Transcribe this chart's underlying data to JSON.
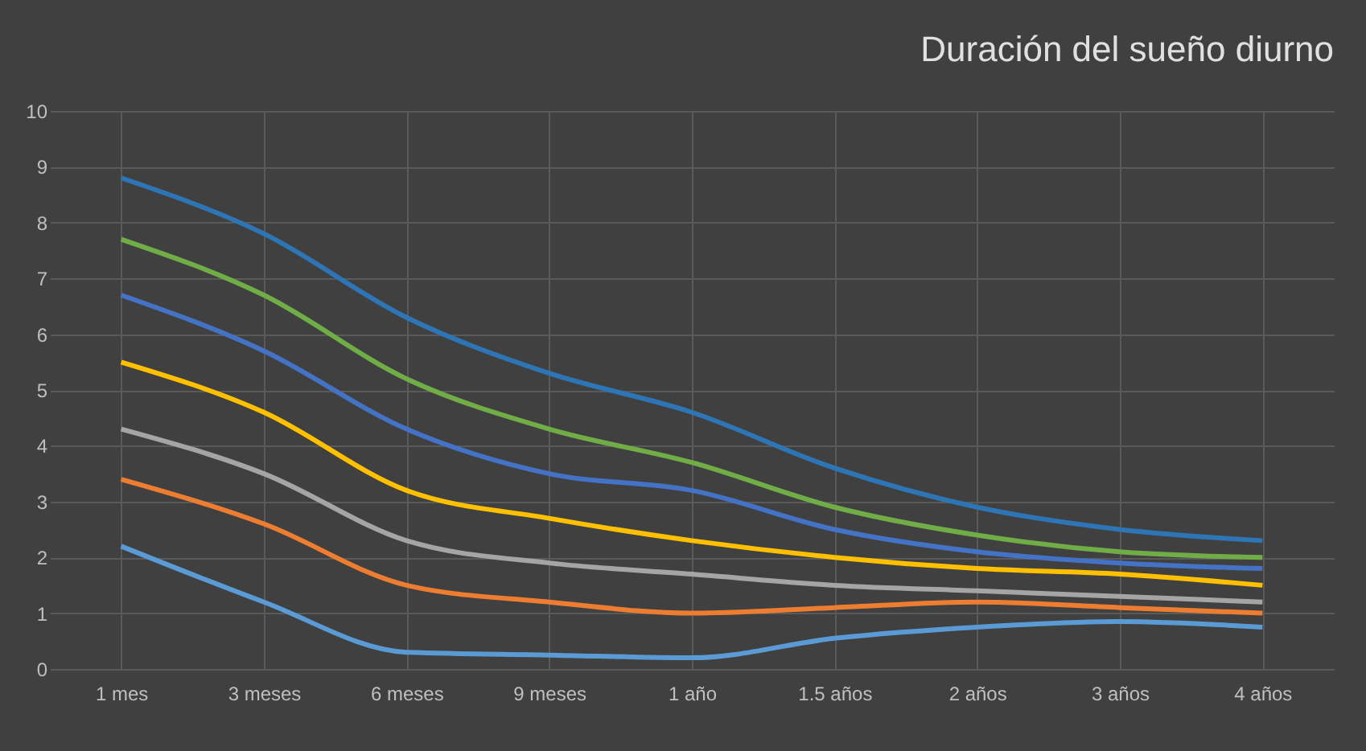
{
  "chart_data": {
    "type": "line",
    "title": "Duración del sueño diurno",
    "categories": [
      "1 mes",
      "3 meses",
      "6 meses",
      "9 meses",
      "1 año",
      "1.5 años",
      "2 años",
      "3 años",
      "4 años"
    ],
    "series": [
      {
        "color": "#2e75b6",
        "values": [
          8.8,
          7.8,
          6.3,
          5.3,
          4.6,
          3.6,
          2.9,
          2.5,
          2.3
        ]
      },
      {
        "color": "#70ad47",
        "values": [
          7.7,
          6.7,
          5.2,
          4.3,
          3.7,
          2.9,
          2.4,
          2.1,
          2.0
        ]
      },
      {
        "color": "#4472c4",
        "values": [
          6.7,
          5.7,
          4.3,
          3.5,
          3.2,
          2.5,
          2.1,
          1.9,
          1.8
        ]
      },
      {
        "color": "#ffc000",
        "values": [
          5.5,
          4.6,
          3.2,
          2.7,
          2.3,
          2.0,
          1.8,
          1.7,
          1.5
        ]
      },
      {
        "color": "#a5a5a5",
        "values": [
          4.3,
          3.5,
          2.3,
          1.9,
          1.7,
          1.5,
          1.4,
          1.3,
          1.2
        ]
      },
      {
        "color": "#ed7d31",
        "values": [
          3.4,
          2.6,
          1.5,
          1.2,
          1.0,
          1.1,
          1.2,
          1.1,
          1.0
        ]
      },
      {
        "color": "#5b9bd5",
        "values": [
          2.2,
          1.2,
          0.3,
          0.25,
          0.2,
          0.55,
          0.75,
          0.85,
          0.75
        ]
      }
    ],
    "ylim": [
      0,
      10
    ],
    "yticks": [
      0,
      1,
      2,
      3,
      4,
      5,
      6,
      7,
      8,
      9,
      10
    ],
    "grid": true,
    "legend": false,
    "marker": "none",
    "line_style": "solid"
  }
}
